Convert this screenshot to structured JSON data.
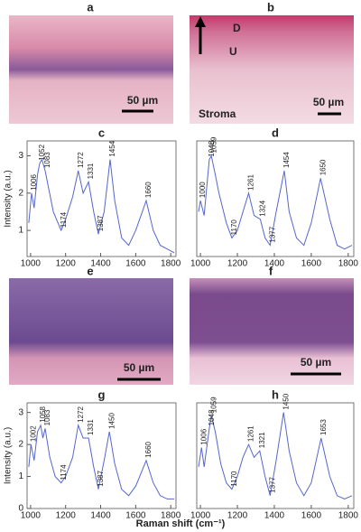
{
  "images": [
    {
      "label": "a",
      "scale": "50 µm"
    },
    {
      "label": "b",
      "scale": "50 µm",
      "texts": [
        "D",
        "U",
        "Stroma"
      ]
    },
    {
      "label": "e",
      "scale": "50 µm"
    },
    {
      "label": "f",
      "scale": "50 µm"
    }
  ],
  "chart_data": [
    {
      "type": "line",
      "title": "c",
      "ylabel": "Intensity (a.u.)",
      "color": "#5566cc",
      "x": [
        990,
        1006,
        1020,
        1040,
        1052,
        1065,
        1083,
        1100,
        1130,
        1174,
        1200,
        1240,
        1272,
        1300,
        1331,
        1360,
        1387,
        1420,
        1454,
        1480,
        1520,
        1560,
        1600,
        1660,
        1700,
        1740,
        1780,
        1820
      ],
      "values": [
        1.2,
        2.0,
        1.6,
        2.5,
        2.8,
        2.9,
        2.6,
        2.2,
        1.5,
        1.0,
        1.3,
        1.9,
        2.6,
        2.0,
        2.3,
        1.5,
        0.9,
        1.5,
        2.9,
        1.8,
        0.8,
        0.6,
        1.0,
        1.8,
        1.0,
        0.6,
        0.5,
        0.4
      ],
      "annotations": [
        1006,
        1052,
        1083,
        1174,
        1272,
        1331,
        1387,
        1454,
        1660
      ],
      "xlim": [
        980,
        1830
      ],
      "xticks": [
        1000,
        1200,
        1400,
        1600,
        1800
      ],
      "ylim": [
        0.3,
        3.4
      ],
      "yticks": [
        1,
        2,
        3
      ]
    },
    {
      "type": "line",
      "title": "d",
      "color": "#5566cc",
      "x": [
        990,
        1000,
        1020,
        1048,
        1059,
        1080,
        1100,
        1140,
        1170,
        1200,
        1230,
        1261,
        1290,
        1324,
        1350,
        1377,
        1410,
        1454,
        1480,
        1520,
        1560,
        1600,
        1650,
        1700,
        1740,
        1780,
        1820
      ],
      "values": [
        1.5,
        1.8,
        1.4,
        2.9,
        3.0,
        2.5,
        2.0,
        1.2,
        0.8,
        1.0,
        1.5,
        2.0,
        1.4,
        1.3,
        0.8,
        0.6,
        1.5,
        2.6,
        1.5,
        0.8,
        0.6,
        1.2,
        2.4,
        1.3,
        0.6,
        0.5,
        0.6
      ],
      "annotations": [
        1000,
        1048,
        1059,
        1170,
        1261,
        1324,
        1377,
        1454,
        1650
      ],
      "xlim": [
        980,
        1830
      ],
      "xticks": [
        1000,
        1200,
        1400,
        1600,
        1800
      ],
      "ylim": [
        0.3,
        3.4
      ]
    },
    {
      "type": "line",
      "title": "g",
      "ylabel": "Intensity (a.u.)",
      "xlabel": "Raman shift (cm⁻¹)",
      "color": "#5566cc",
      "x": [
        990,
        1002,
        1020,
        1040,
        1058,
        1070,
        1083,
        1110,
        1140,
        1174,
        1200,
        1240,
        1272,
        1300,
        1331,
        1360,
        1387,
        1420,
        1450,
        1480,
        1520,
        1560,
        1600,
        1660,
        1700,
        1740,
        1780,
        1820
      ],
      "values": [
        1.3,
        2.0,
        1.5,
        2.4,
        2.6,
        2.2,
        2.5,
        1.6,
        1.0,
        0.8,
        1.0,
        1.6,
        2.6,
        2.2,
        2.2,
        1.3,
        0.6,
        1.5,
        2.4,
        1.4,
        0.6,
        0.4,
        0.7,
        1.5,
        0.8,
        0.4,
        0.3,
        0.3
      ],
      "annotations": [
        1002,
        1058,
        1083,
        1174,
        1272,
        1331,
        1387,
        1450,
        1660
      ],
      "xlim": [
        980,
        1830
      ],
      "xticks": [
        1000,
        1200,
        1400,
        1600,
        1800
      ],
      "ylim": [
        0,
        3.3
      ],
      "yticks": [
        0,
        1,
        2,
        3
      ]
    },
    {
      "type": "line",
      "title": "h",
      "color": "#5566cc",
      "x": [
        990,
        1006,
        1020,
        1048,
        1059,
        1080,
        1110,
        1140,
        1170,
        1200,
        1230,
        1261,
        1290,
        1321,
        1350,
        1377,
        1410,
        1450,
        1480,
        1520,
        1560,
        1600,
        1653,
        1700,
        1740,
        1780,
        1820
      ],
      "values": [
        1.3,
        1.9,
        1.3,
        2.5,
        2.9,
        2.4,
        1.4,
        0.8,
        0.6,
        1.0,
        1.6,
        2.0,
        1.6,
        1.8,
        1.0,
        0.4,
        1.5,
        3.0,
        1.8,
        0.8,
        0.4,
        0.8,
        2.2,
        1.0,
        0.4,
        0.3,
        0.4
      ],
      "annotations": [
        1006,
        1048,
        1059,
        1170,
        1261,
        1321,
        1377,
        1450,
        1653
      ],
      "xlim": [
        980,
        1830
      ],
      "xticks": [
        1000,
        1200,
        1400,
        1600,
        1800
      ],
      "ylim": [
        0,
        3.3
      ]
    }
  ]
}
